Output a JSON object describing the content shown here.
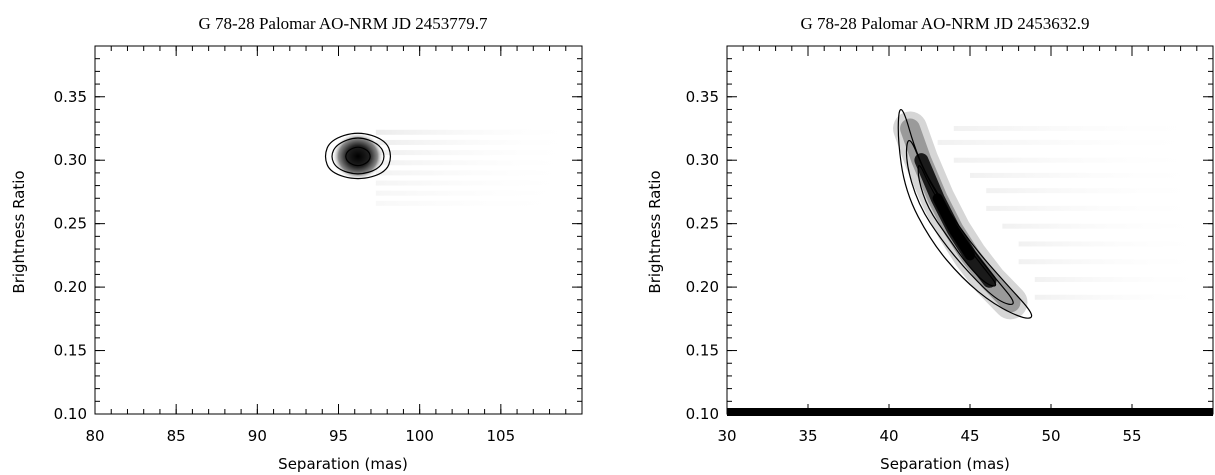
{
  "chart_data": [
    {
      "type": "heatmap",
      "title": "G 78-28 Palomar AO-NRM JD 2453779.7",
      "xlabel": "Separation (mas)",
      "ylabel": "Brightness Ratio",
      "xlim": [
        80,
        110
      ],
      "ylim": [
        0.1,
        0.39
      ],
      "xticks": [
        80,
        85,
        90,
        95,
        100,
        105
      ],
      "xtick_labels": [
        "80",
        "85",
        "90",
        "95",
        "100",
        "105"
      ],
      "yticks": [
        0.1,
        0.15,
        0.2,
        0.25,
        0.3,
        0.35
      ],
      "ytick_labels": [
        "0.10",
        "0.15",
        "0.20",
        "0.25",
        "0.30",
        "0.35"
      ],
      "peak": {
        "x": 96.2,
        "y": 0.303
      },
      "contours": [
        {
          "level": "inner",
          "points": [
            [
              95.6,
              0.308
            ],
            [
              96.2,
              0.311
            ],
            [
              96.8,
              0.308
            ],
            [
              97.0,
              0.303
            ],
            [
              96.8,
              0.298
            ],
            [
              96.2,
              0.295
            ],
            [
              95.6,
              0.298
            ],
            [
              95.4,
              0.303
            ]
          ]
        },
        {
          "level": "middle",
          "points": [
            [
              94.9,
              0.313
            ],
            [
              96.2,
              0.319
            ],
            [
              97.5,
              0.313
            ],
            [
              97.9,
              0.303
            ],
            [
              97.5,
              0.293
            ],
            [
              96.2,
              0.288
            ],
            [
              94.9,
              0.293
            ],
            [
              94.5,
              0.303
            ]
          ]
        },
        {
          "level": "outer",
          "points": [
            [
              94.5,
              0.316
            ],
            [
              96.2,
              0.323
            ],
            [
              97.9,
              0.316
            ],
            [
              98.3,
              0.303
            ],
            [
              97.9,
              0.29
            ],
            [
              96.2,
              0.284
            ],
            [
              94.5,
              0.29
            ],
            [
              94.1,
              0.303
            ]
          ]
        }
      ]
    },
    {
      "type": "heatmap",
      "title": "G 78-28 Palomar AO-NRM JD 2453632.9",
      "xlabel": "Separation (mas)",
      "ylabel": "Brightness Ratio",
      "xlim": [
        30,
        60
      ],
      "ylim": [
        0.1,
        0.39
      ],
      "xticks": [
        30,
        35,
        40,
        45,
        50,
        55
      ],
      "xtick_labels": [
        "30",
        "35",
        "40",
        "45",
        "50",
        "55"
      ],
      "yticks": [
        0.1,
        0.15,
        0.2,
        0.25,
        0.3,
        0.35
      ],
      "ytick_labels": [
        "0.10",
        "0.15",
        "0.20",
        "0.25",
        "0.30",
        "0.35"
      ],
      "peak": {
        "x": 43.8,
        "y": 0.245
      },
      "ridge": [
        [
          41.3,
          0.325
        ],
        [
          42.0,
          0.3
        ],
        [
          43.0,
          0.27
        ],
        [
          44.0,
          0.245
        ],
        [
          45.0,
          0.225
        ],
        [
          46.2,
          0.205
        ],
        [
          47.5,
          0.188
        ]
      ],
      "contours": [
        {
          "level": "inner",
          "points": [
            [
              41.8,
              0.3
            ],
            [
              42.5,
              0.28
            ],
            [
              43.5,
              0.258
            ],
            [
              44.6,
              0.236
            ],
            [
              45.8,
              0.216
            ],
            [
              46.8,
              0.2
            ],
            [
              46.0,
              0.202
            ],
            [
              44.8,
              0.218
            ],
            [
              43.6,
              0.24
            ],
            [
              42.4,
              0.262
            ],
            [
              41.8,
              0.285
            ]
          ]
        },
        {
          "level": "middle",
          "points": [
            [
              41.2,
              0.322
            ],
            [
              42.2,
              0.29
            ],
            [
              43.5,
              0.262
            ],
            [
              45.0,
              0.232
            ],
            [
              46.5,
              0.208
            ],
            [
              48.0,
              0.185
            ],
            [
              46.8,
              0.188
            ],
            [
              45.0,
              0.21
            ],
            [
              43.3,
              0.236
            ],
            [
              41.8,
              0.265
            ],
            [
              41.0,
              0.3
            ]
          ]
        },
        {
          "level": "outer",
          "points": [
            [
              40.7,
              0.349
            ],
            [
              41.8,
              0.3
            ],
            [
              43.4,
              0.265
            ],
            [
              45.2,
              0.232
            ],
            [
              47.2,
              0.203
            ],
            [
              49.0,
              0.178
            ],
            [
              48.5,
              0.174
            ],
            [
              46.5,
              0.186
            ],
            [
              44.5,
              0.207
            ],
            [
              42.6,
              0.236
            ],
            [
              41.0,
              0.275
            ],
            [
              40.5,
              0.32
            ]
          ]
        }
      ],
      "colors": {
        "bottom_band": "#000000"
      }
    }
  ]
}
